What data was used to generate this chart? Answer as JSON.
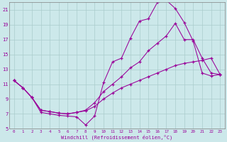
{
  "xlabel": "Windchill (Refroidissement éolien,°C)",
  "xlim": [
    -0.5,
    23.5
  ],
  "ylim": [
    5,
    22
  ],
  "xticks": [
    0,
    1,
    2,
    3,
    4,
    5,
    6,
    7,
    8,
    9,
    10,
    11,
    12,
    13,
    14,
    15,
    16,
    17,
    18,
    19,
    20,
    21,
    22,
    23
  ],
  "yticks": [
    5,
    7,
    9,
    11,
    13,
    15,
    17,
    19,
    21
  ],
  "line_color": "#990099",
  "bg_color": "#cce8ea",
  "grid_color": "#aacccc",
  "line1_x": [
    0,
    1,
    2,
    3,
    4,
    5,
    6,
    7,
    8,
    9,
    10,
    11,
    12,
    13,
    14,
    15,
    16,
    17,
    18,
    19,
    20,
    21,
    22,
    23
  ],
  "line1_y": [
    11.5,
    10.5,
    9.2,
    7.2,
    7.0,
    6.8,
    6.7,
    6.6,
    5.5,
    6.7,
    11.2,
    14.0,
    14.5,
    17.2,
    19.5,
    19.8,
    22.0,
    22.3,
    21.2,
    19.3,
    16.8,
    12.5,
    12.1,
    12.3
  ],
  "line2_x": [
    0,
    1,
    2,
    3,
    4,
    5,
    6,
    7,
    8,
    9,
    10,
    11,
    12,
    13,
    14,
    15,
    16,
    17,
    18,
    19,
    20,
    21,
    22,
    23
  ],
  "line2_y": [
    11.5,
    10.5,
    9.2,
    7.5,
    7.3,
    7.1,
    7.0,
    7.2,
    7.5,
    8.5,
    10.0,
    11.0,
    12.0,
    13.2,
    14.0,
    15.5,
    16.5,
    17.5,
    19.2,
    17.0,
    17.0,
    14.5,
    12.5,
    12.3
  ],
  "line3_x": [
    0,
    1,
    2,
    3,
    4,
    5,
    6,
    7,
    8,
    9,
    10,
    11,
    12,
    13,
    14,
    15,
    16,
    17,
    18,
    19,
    20,
    21,
    22,
    23
  ],
  "line3_y": [
    11.5,
    10.5,
    9.2,
    7.5,
    7.3,
    7.1,
    7.0,
    7.2,
    7.4,
    8.0,
    9.0,
    9.8,
    10.5,
    11.0,
    11.5,
    12.0,
    12.5,
    13.0,
    13.5,
    13.8,
    14.0,
    14.2,
    14.5,
    12.3
  ]
}
